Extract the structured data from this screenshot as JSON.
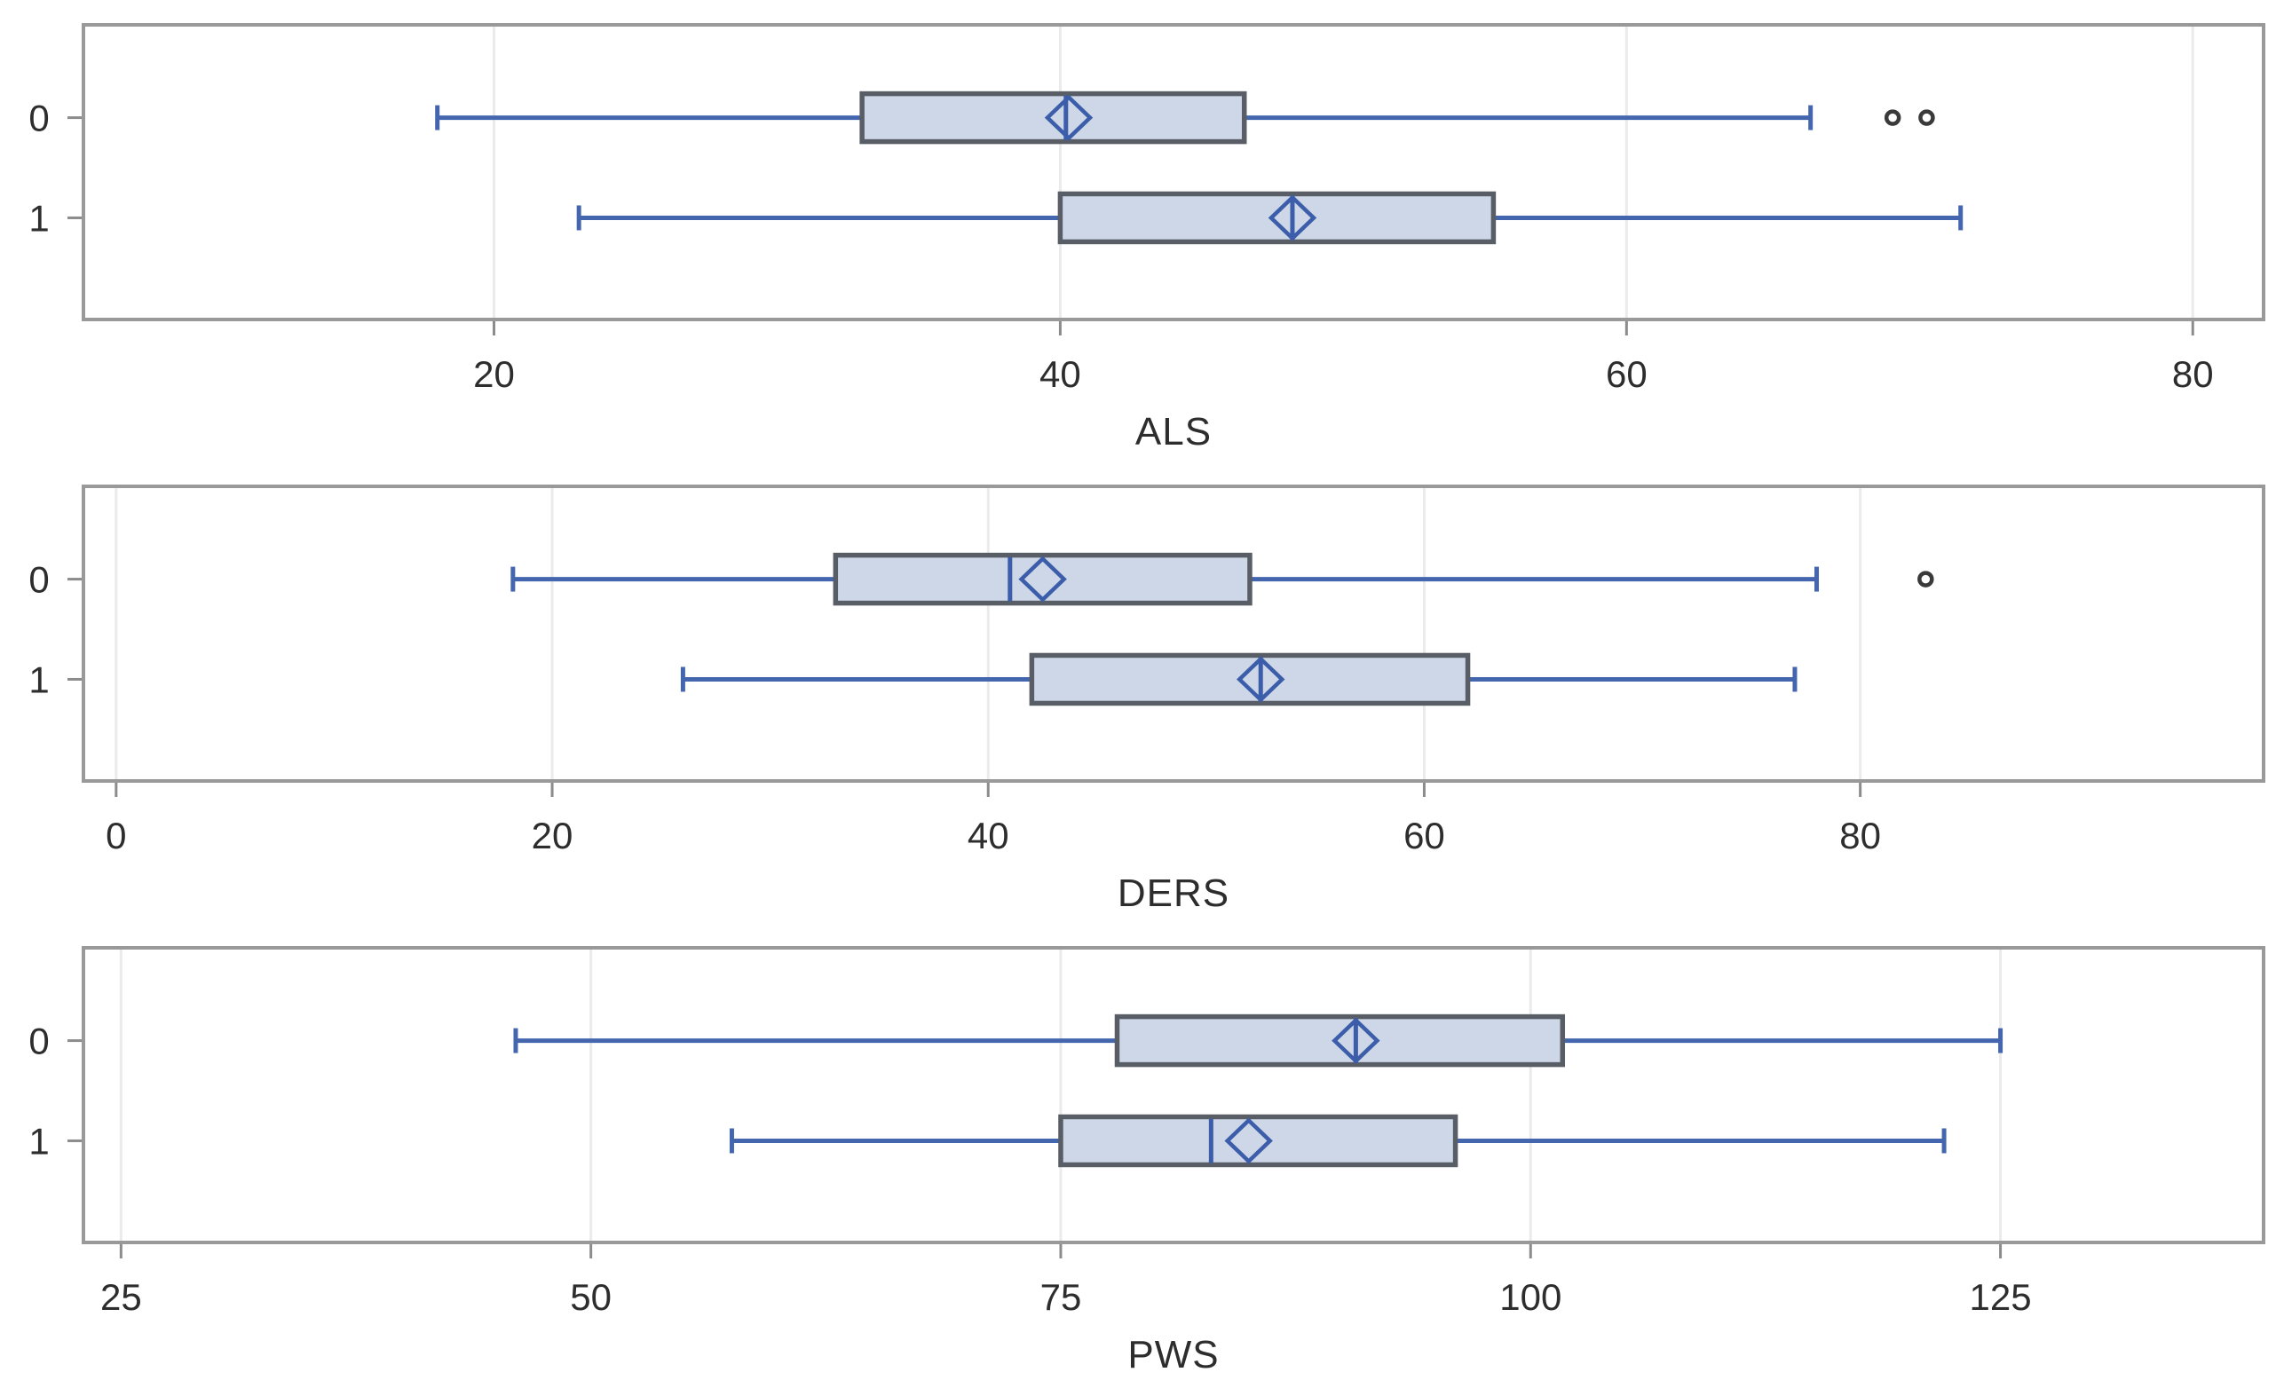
{
  "colors": {
    "box_fill": "#cdd7e7",
    "box_border": "#595e66",
    "whisker": "#4466af",
    "median": "#3c5da9",
    "mean_marker": "#3c5da9",
    "outlier": "#3a3a3a",
    "gridline": "#ebebeb",
    "plot_border": "#999999",
    "tick": "#8c8c8c",
    "text": "#2d2d2d",
    "background": "#ffffff"
  },
  "chart_data": [
    {
      "type": "boxplot",
      "orientation": "horizontal",
      "xlabel": "ALS",
      "xlim": [
        5.5,
        82.5
      ],
      "xticks": [
        "20",
        "40",
        "60",
        "80"
      ],
      "xtick_values": [
        20,
        40,
        60,
        80
      ],
      "categories": [
        "0",
        "1"
      ],
      "grid": true,
      "legend": "none",
      "series": [
        {
          "category": "0",
          "whisker_low": 18,
          "q1": 33,
          "median": 40.2,
          "mean": 40.3,
          "q3": 46.5,
          "whisker_high": 66.5,
          "outliers": [
            69.4,
            70.6
          ]
        },
        {
          "category": "1",
          "whisker_low": 23,
          "q1": 40,
          "median": 48.2,
          "mean": 48.2,
          "q3": 55.3,
          "whisker_high": 71.8,
          "outliers": []
        }
      ]
    },
    {
      "type": "boxplot",
      "orientation": "horizontal",
      "xlabel": "DERS",
      "xlim": [
        -1.5,
        98.5
      ],
      "xticks": [
        "0",
        "20",
        "40",
        "60",
        "80"
      ],
      "xtick_values": [
        0,
        20,
        40,
        60,
        80
      ],
      "categories": [
        "0",
        "1"
      ],
      "grid": true,
      "legend": "none",
      "series": [
        {
          "category": "0",
          "whisker_low": 18.2,
          "q1": 33,
          "median": 41,
          "mean": 42.5,
          "q3": 52,
          "whisker_high": 78,
          "outliers": [
            83
          ]
        },
        {
          "category": "1",
          "whisker_low": 26,
          "q1": 42,
          "median": 52.5,
          "mean": 52.5,
          "q3": 62,
          "whisker_high": 77,
          "outliers": []
        }
      ]
    },
    {
      "type": "boxplot",
      "orientation": "horizontal",
      "xlabel": "PWS",
      "xlim": [
        23,
        139
      ],
      "xticks": [
        "25",
        "50",
        "75",
        "100",
        "125"
      ],
      "xtick_values": [
        25,
        50,
        75,
        100,
        125
      ],
      "categories": [
        "0",
        "1"
      ],
      "grid": true,
      "legend": "none",
      "series": [
        {
          "category": "0",
          "whisker_low": 46,
          "q1": 78,
          "median": 90.7,
          "mean": 90.7,
          "q3": 101.7,
          "whisker_high": 125,
          "outliers": []
        },
        {
          "category": "1",
          "whisker_low": 57.5,
          "q1": 75,
          "median": 83,
          "mean": 85,
          "q3": 96,
          "whisker_high": 122,
          "outliers": []
        }
      ]
    }
  ]
}
